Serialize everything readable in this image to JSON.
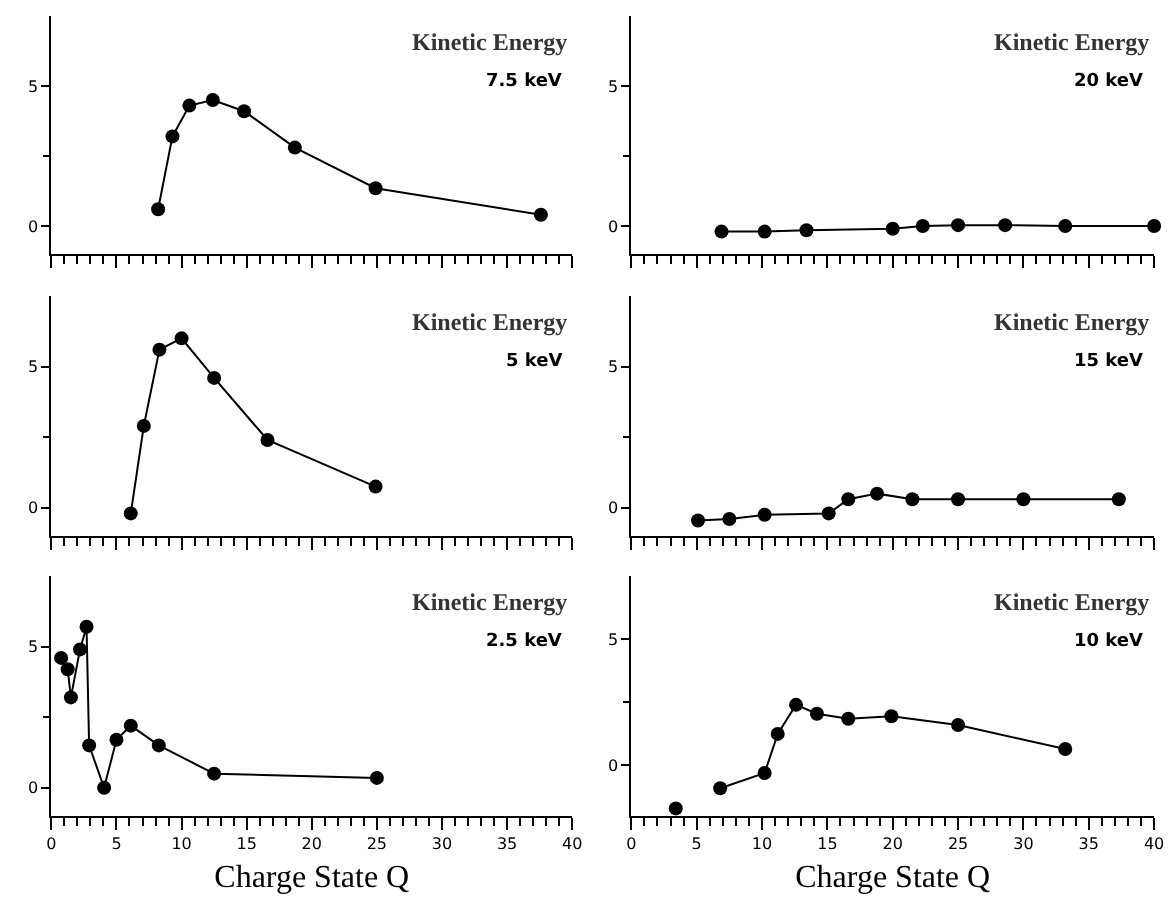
{
  "chart_data": [
    {
      "type": "line",
      "title": "Kinetic Energy",
      "subtitle": "7.5 keV",
      "xlim": [
        0,
        40
      ],
      "ylim": [
        -1,
        7.5
      ],
      "xticks": [
        0,
        5,
        10,
        15,
        20,
        25,
        30,
        35,
        40
      ],
      "yticks": [
        0,
        5
      ],
      "tick_labels": "y",
      "marker": "circle",
      "line_style": "solid",
      "series": [
        {
          "color": "#000000",
          "x": [
            8.2,
            9.3,
            10.6,
            12.4,
            14.8,
            18.7,
            24.9,
            37.6
          ],
          "values": [
            0.6,
            3.2,
            4.3,
            4.5,
            4.1,
            2.8,
            1.35,
            0.4
          ]
        }
      ]
    },
    {
      "type": "line",
      "title": "Kinetic Energy",
      "subtitle": "20 keV",
      "xlim": [
        0,
        40
      ],
      "ylim": [
        -1,
        7.5
      ],
      "xticks": [
        0,
        5,
        10,
        15,
        20,
        25,
        30,
        35,
        40
      ],
      "yticks": [
        0,
        5
      ],
      "tick_labels": "y",
      "marker": "circle",
      "line_style": "solid",
      "series": [
        {
          "color": "#000000",
          "x": [
            6.9,
            10.2,
            13.4,
            20,
            22.3,
            25,
            28.6,
            33.2,
            40
          ],
          "values": [
            -0.2,
            -0.2,
            -0.15,
            -0.1,
            0,
            0.03,
            0.03,
            0,
            0
          ]
        }
      ]
    },
    {
      "type": "line",
      "title": "Kinetic Energy",
      "subtitle": "5 keV",
      "xlim": [
        0,
        40
      ],
      "ylim": [
        -1,
        7.5
      ],
      "xticks": [
        0,
        5,
        10,
        15,
        20,
        25,
        30,
        35,
        40
      ],
      "yticks": [
        0,
        5
      ],
      "tick_labels": "y",
      "marker": "circle",
      "line_style": "solid",
      "series": [
        {
          "color": "#000000",
          "x": [
            6.1,
            7.1,
            8.3,
            10,
            12.5,
            16.6,
            24.9
          ],
          "values": [
            -0.2,
            2.9,
            5.6,
            6.0,
            4.6,
            2.4,
            0.75
          ]
        }
      ]
    },
    {
      "type": "line",
      "title": "Kinetic Energy",
      "subtitle": "15 keV",
      "xlim": [
        0,
        40
      ],
      "ylim": [
        -1,
        7.5
      ],
      "xticks": [
        0,
        5,
        10,
        15,
        20,
        25,
        30,
        35,
        40
      ],
      "yticks": [
        0,
        5
      ],
      "tick_labels": "y",
      "marker": "circle",
      "line_style": "solid",
      "series": [
        {
          "color": "#000000",
          "x": [
            5.1,
            7.5,
            10.2,
            15.1,
            16.6,
            18.8,
            21.5,
            25,
            30,
            37.3
          ],
          "values": [
            -0.45,
            -0.4,
            -0.25,
            -0.2,
            0.3,
            0.5,
            0.3,
            0.3,
            0.3,
            0.3
          ]
        }
      ]
    },
    {
      "type": "line",
      "title": "Kinetic Energy",
      "subtitle": "2.5 keV",
      "xlabel": "Charge State Q",
      "xlim": [
        0,
        40
      ],
      "ylim": [
        -1,
        7.5
      ],
      "xticks": [
        0,
        5,
        10,
        15,
        20,
        25,
        30,
        35,
        40
      ],
      "yticks": [
        0,
        5
      ],
      "marker": "circle",
      "line_style": "solid",
      "series": [
        {
          "color": "#000000",
          "x": [
            0.75,
            1.25,
            1.5,
            2.2,
            2.7,
            2.9,
            4.05,
            5.0,
            6.1,
            8.25,
            12.5,
            25
          ],
          "values": [
            4.6,
            4.2,
            3.2,
            4.9,
            5.7,
            1.5,
            0,
            1.7,
            2.2,
            1.5,
            0.5,
            0.35
          ]
        }
      ]
    },
    {
      "type": "line",
      "title": "Kinetic Energy",
      "subtitle": "10 keV",
      "xlabel": "Charge State Q",
      "xlim": [
        0,
        40
      ],
      "ylim": [
        -2,
        7.5
      ],
      "xticks": [
        0,
        5,
        10,
        15,
        20,
        25,
        30,
        35,
        40
      ],
      "yticks": [
        0,
        5
      ],
      "marker": "circle",
      "line_style": "solid",
      "series": [
        {
          "color": "#000000",
          "type": "scatter",
          "x": [
            3.4
          ],
          "values": [
            -1.7
          ]
        },
        {
          "color": "#000000",
          "x": [
            6.8,
            10.2,
            11.2,
            12.6,
            14.2,
            16.6,
            19.9,
            25,
            33.2
          ],
          "values": [
            -0.9,
            -0.3,
            1.25,
            2.4,
            2.05,
            1.85,
            1.95,
            1.6,
            0.65
          ]
        }
      ]
    }
  ]
}
